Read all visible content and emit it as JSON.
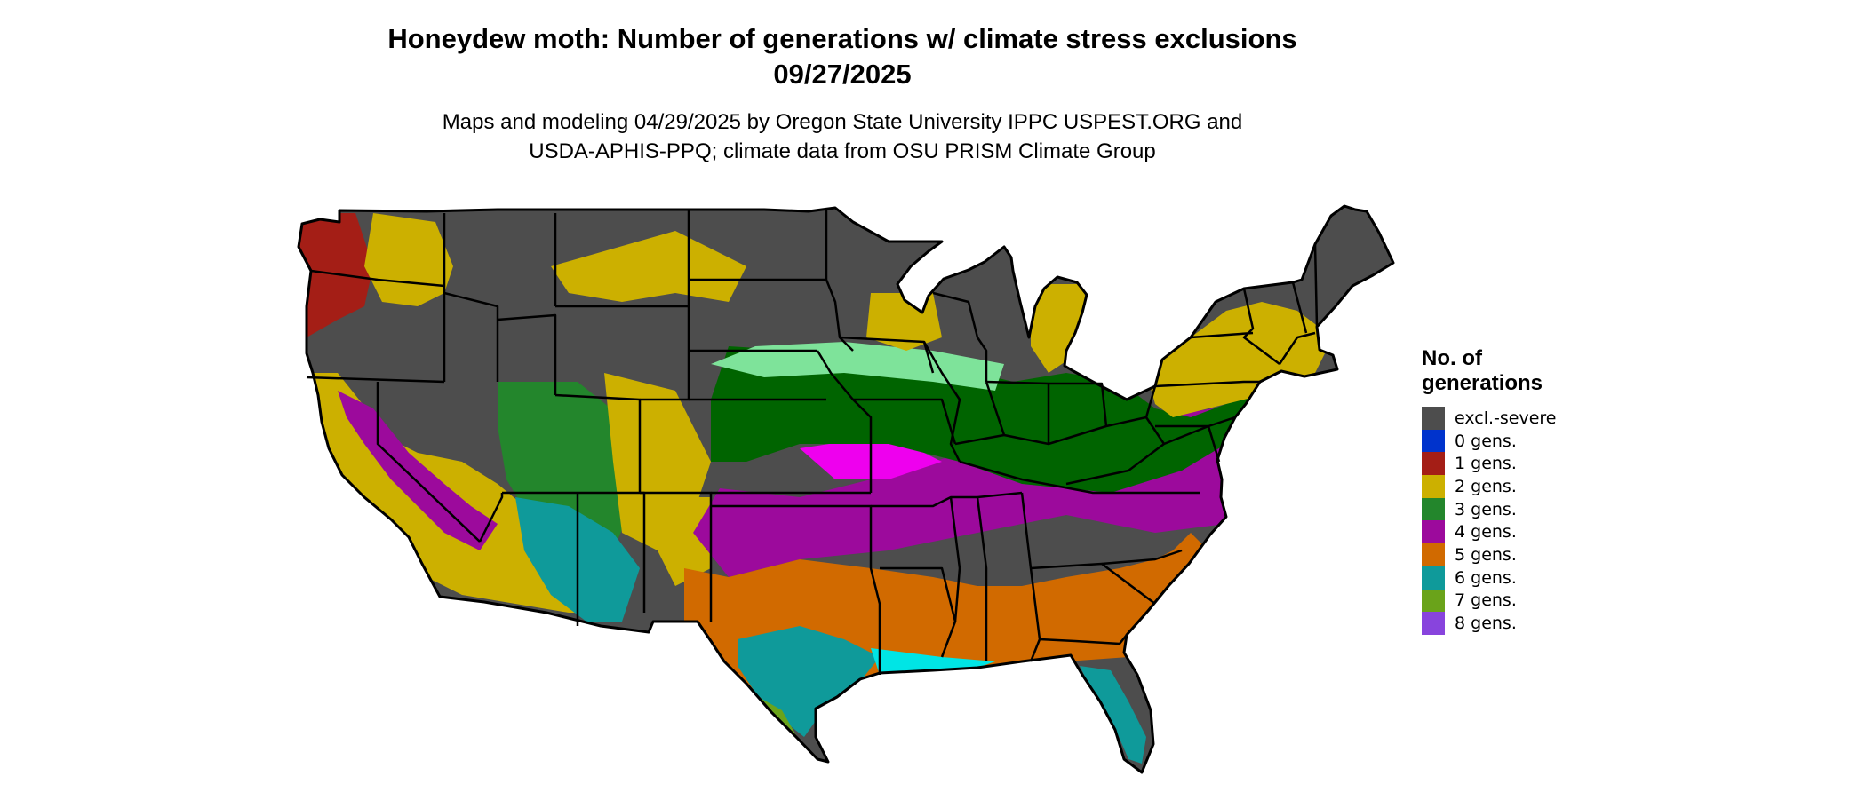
{
  "title": {
    "line1": "Honeydew moth: Number of generations w/ climate stress exclusions",
    "line2": "09/27/2025"
  },
  "subtitle": {
    "line1": "Maps and modeling 04/29/2025 by Oregon State University IPPC USPEST.ORG and",
    "line2": "USDA-APHIS-PPQ; climate data from OSU PRISM Climate Group"
  },
  "legend": {
    "title_line1": "No. of",
    "title_line2": "generations",
    "items": [
      {
        "label": "excl.-severe",
        "color": "#4d4d4d"
      },
      {
        "label": "0 gens.",
        "color": "#0033cc"
      },
      {
        "label": "1 gens.",
        "color": "#a41e16"
      },
      {
        "label": "2 gens.",
        "color": "#ccb000"
      },
      {
        "label": "3 gens.",
        "color": "#23862c"
      },
      {
        "label": "4 gens.",
        "color": "#9c0a9c"
      },
      {
        "label": "5 gens.",
        "color": "#d16a00"
      },
      {
        "label": "6 gens.",
        "color": "#0f9a9a"
      },
      {
        "label": "7 gens.",
        "color": "#6aa31a"
      },
      {
        "label": "8 gens.",
        "color": "#8844dd"
      }
    ]
  },
  "map_colors": {
    "excl": "#4d4d4d",
    "g1": "#a41e16",
    "g2": "#ccb000",
    "g3": "#006400",
    "g3b": "#23862c",
    "g4": "#9c0a9c",
    "g4b": "#ee00ee",
    "g5": "#d16a00",
    "g6": "#0f9a9a",
    "g6b": "#00e5e5",
    "g7": "#6aa31a",
    "light": "#7ee39a",
    "border": "#000000"
  }
}
